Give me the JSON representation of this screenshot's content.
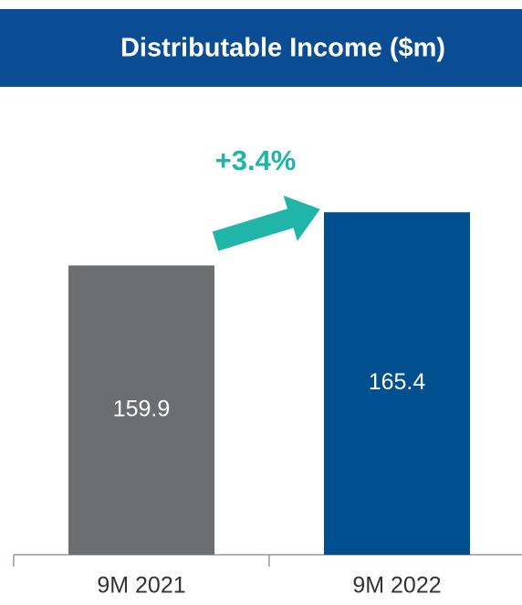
{
  "chart_data": {
    "type": "bar",
    "title": "Distributable Income ($m)",
    "annotation": "+3.4%",
    "categories": [
      "9M 2021",
      "9M 2022"
    ],
    "values": [
      159.9,
      165.4
    ],
    "colors": [
      "#6d6e70",
      "#004f8f"
    ],
    "ylim": [
      130,
      176
    ]
  }
}
